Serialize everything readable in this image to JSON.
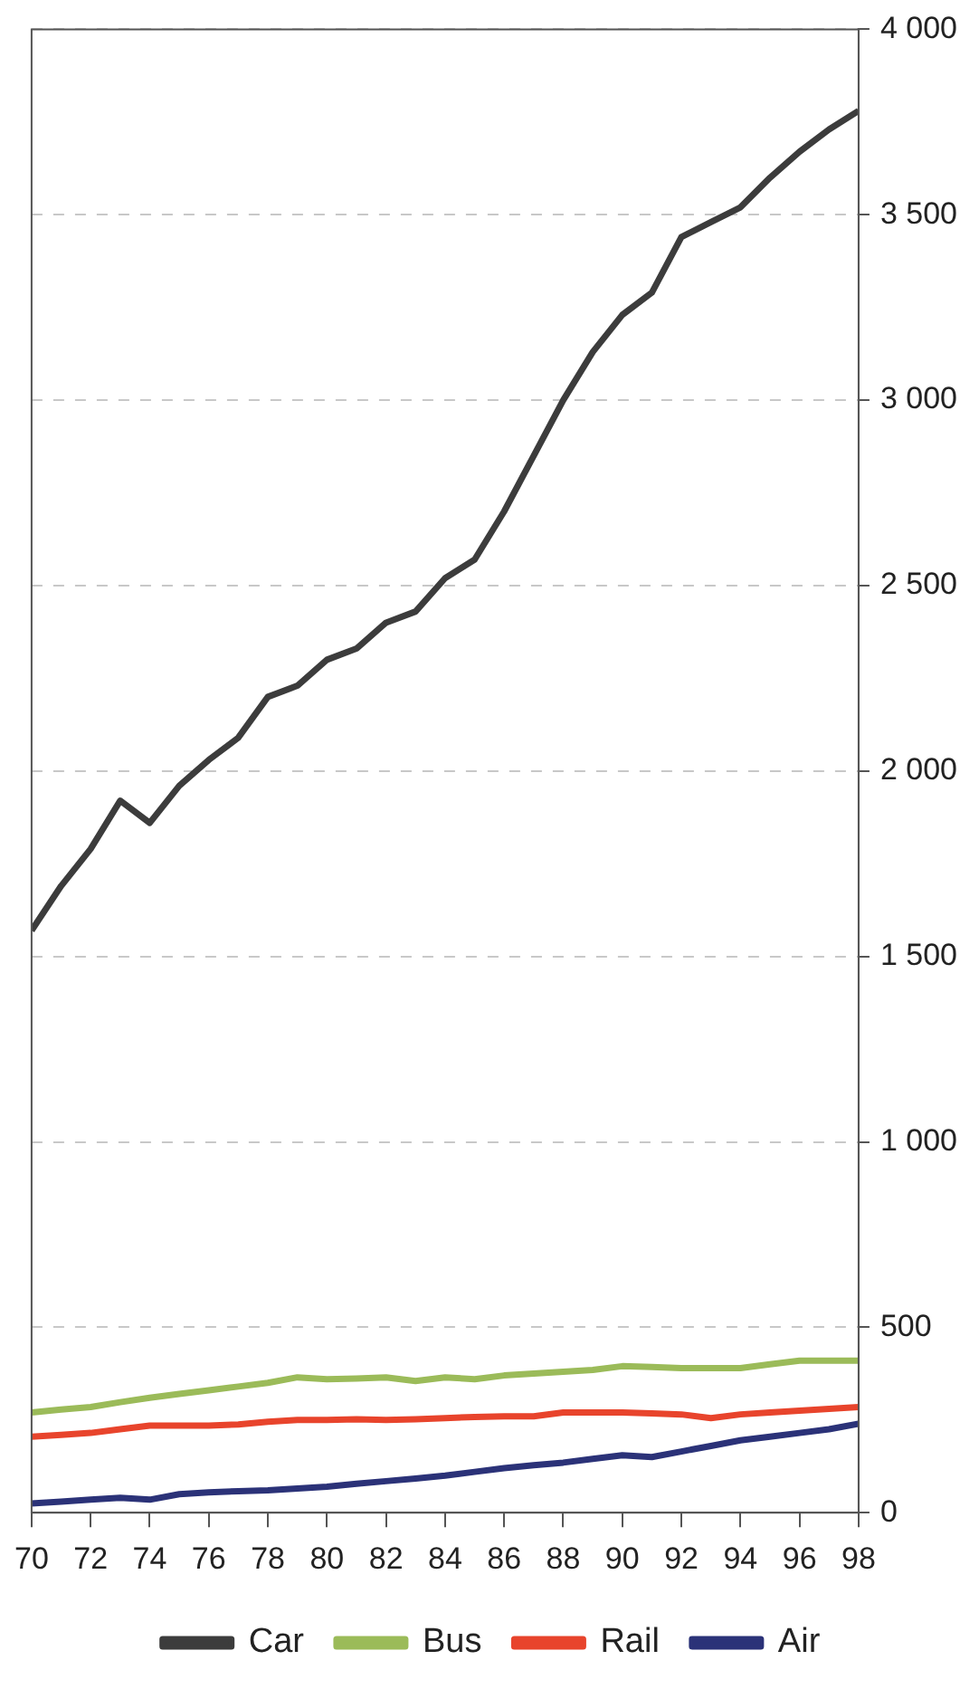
{
  "chart_data": {
    "type": "line",
    "x": [
      70,
      71,
      72,
      73,
      74,
      75,
      76,
      77,
      78,
      79,
      80,
      81,
      82,
      83,
      84,
      85,
      86,
      87,
      88,
      89,
      90,
      91,
      92,
      93,
      94,
      95,
      96,
      97,
      98
    ],
    "series": [
      {
        "name": "Car",
        "color": "#3c3c3c",
        "values": [
          1570,
          1690,
          1790,
          1920,
          1860,
          1960,
          2030,
          2090,
          2200,
          2230,
          2300,
          2330,
          2400,
          2430,
          2520,
          2570,
          2700,
          2850,
          3000,
          3130,
          3230,
          3290,
          3440,
          3480,
          3520,
          3600,
          3670,
          3730,
          3780
        ]
      },
      {
        "name": "Bus",
        "color": "#9bbb59",
        "values": [
          270,
          278,
          285,
          298,
          310,
          320,
          330,
          340,
          350,
          365,
          360,
          362,
          365,
          355,
          365,
          360,
          370,
          375,
          380,
          385,
          395,
          393,
          390,
          390,
          390,
          400,
          410,
          410,
          410
        ]
      },
      {
        "name": "Rail",
        "color": "#e8442c",
        "values": [
          205,
          210,
          215,
          225,
          235,
          235,
          235,
          238,
          245,
          250,
          250,
          252,
          250,
          252,
          255,
          258,
          260,
          260,
          270,
          270,
          270,
          268,
          265,
          255,
          265,
          270,
          275,
          280,
          285
        ]
      },
      {
        "name": "Air",
        "color": "#2b3278",
        "values": [
          25,
          30,
          35,
          40,
          35,
          50,
          55,
          58,
          60,
          65,
          70,
          78,
          85,
          92,
          100,
          110,
          120,
          128,
          135,
          145,
          155,
          150,
          165,
          180,
          195,
          205,
          215,
          225,
          240
        ]
      }
    ],
    "xlim": [
      70,
      98
    ],
    "xticks": [
      70,
      72,
      74,
      76,
      78,
      80,
      82,
      84,
      86,
      88,
      90,
      92,
      94,
      96,
      98
    ],
    "ylim": [
      0,
      4000
    ],
    "yticks": [
      0,
      {
        "value": 500,
        "label": "500"
      },
      {
        "value": 1000,
        "label": "1 000"
      },
      {
        "value": 1500,
        "label": "1 500"
      },
      {
        "value": 2000,
        "label": "2 000"
      },
      {
        "value": 2500,
        "label": "2 500"
      },
      {
        "value": 3000,
        "label": "3 000"
      },
      {
        "value": 3500,
        "label": "3 500"
      },
      {
        "value": 4000,
        "label": "4 000"
      }
    ],
    "grid": "y",
    "legend": "bottom",
    "line_style": "solid"
  }
}
